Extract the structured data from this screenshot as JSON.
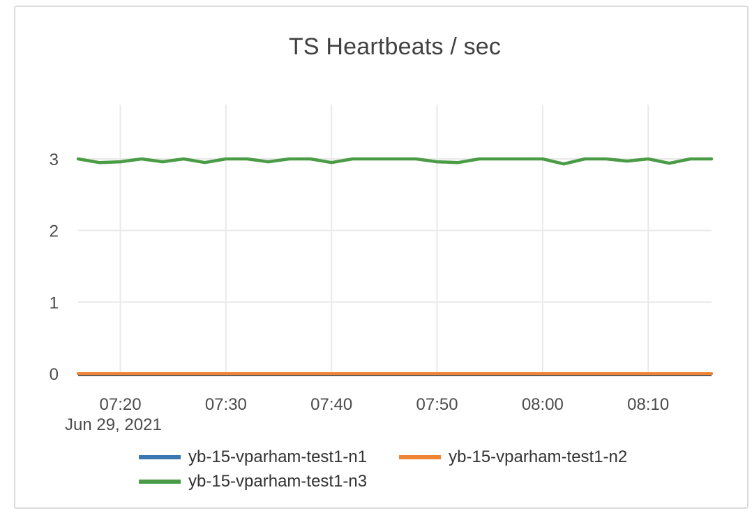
{
  "chart_data": {
    "type": "line",
    "title": "TS Heartbeats / sec",
    "xlabel": "",
    "ylabel": "",
    "x_date_label": "Jun 29, 2021",
    "x": [
      "07:16",
      "07:18",
      "07:20",
      "07:22",
      "07:24",
      "07:26",
      "07:28",
      "07:30",
      "07:32",
      "07:34",
      "07:36",
      "07:38",
      "07:40",
      "07:42",
      "07:44",
      "07:46",
      "07:48",
      "07:50",
      "07:52",
      "07:54",
      "07:56",
      "07:58",
      "08:00",
      "08:02",
      "08:04",
      "08:06",
      "08:08",
      "08:10",
      "08:12",
      "08:14",
      "08:16"
    ],
    "x_ticks": [
      "07:20",
      "07:30",
      "07:40",
      "07:50",
      "08:00",
      "08:10"
    ],
    "y_ticks": [
      0,
      1,
      2,
      3
    ],
    "ylim": [
      0,
      3.76
    ],
    "grid": true,
    "legend_position": "bottom",
    "series": [
      {
        "name": "yb-15-vparham-test1-n1",
        "color": "#3b78af",
        "values": [
          0,
          0,
          0,
          0,
          0,
          0,
          0,
          0,
          0,
          0,
          0,
          0,
          0,
          0,
          0,
          0,
          0,
          0,
          0,
          0,
          0,
          0,
          0,
          0,
          0,
          0,
          0,
          0,
          0,
          0,
          0
        ]
      },
      {
        "name": "yb-15-vparham-test1-n2",
        "color": "#ee8434",
        "values": [
          0,
          0,
          0,
          0,
          0,
          0,
          0,
          0,
          0,
          0,
          0,
          0,
          0,
          0,
          0,
          0,
          0,
          0,
          0,
          0,
          0,
          0,
          0,
          0,
          0,
          0,
          0,
          0,
          0,
          0,
          0
        ]
      },
      {
        "name": "yb-15-vparham-test1-n3",
        "color": "#4a9b45",
        "values": [
          3,
          2.95,
          2.96,
          3,
          2.96,
          3,
          2.95,
          3,
          3,
          2.96,
          3,
          3,
          2.95,
          3,
          3,
          3,
          3,
          2.96,
          2.95,
          3,
          3,
          3,
          3,
          2.93,
          3,
          3,
          2.97,
          3,
          2.94,
          3,
          3
        ]
      }
    ]
  },
  "style": {
    "grid_color": "#e9e9e9",
    "axis_line_color": "#3f3f3f",
    "tick_text_color": "#4b4b4b",
    "title_color": "#414141",
    "card_border_color": "#dcdcdc",
    "background": "#ffffff"
  }
}
